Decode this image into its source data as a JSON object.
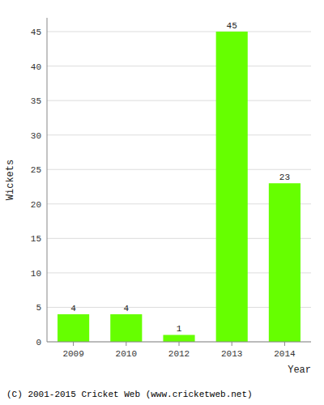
{
  "chart_data": {
    "type": "bar",
    "categories": [
      "2009",
      "2010",
      "2012",
      "2013",
      "2014"
    ],
    "values": [
      4,
      4,
      1,
      45,
      23
    ],
    "color": "#66ff00",
    "xlabel": "Year",
    "ylabel": "Wickets",
    "ylim": [
      0,
      47
    ],
    "yticks": [
      0,
      5,
      10,
      15,
      20,
      25,
      30,
      35,
      40,
      45
    ],
    "grid": true,
    "data_labels": true,
    "annotations": [
      "(C) 2001-2015 Cricket Web (www.cricketweb.net)"
    ]
  }
}
